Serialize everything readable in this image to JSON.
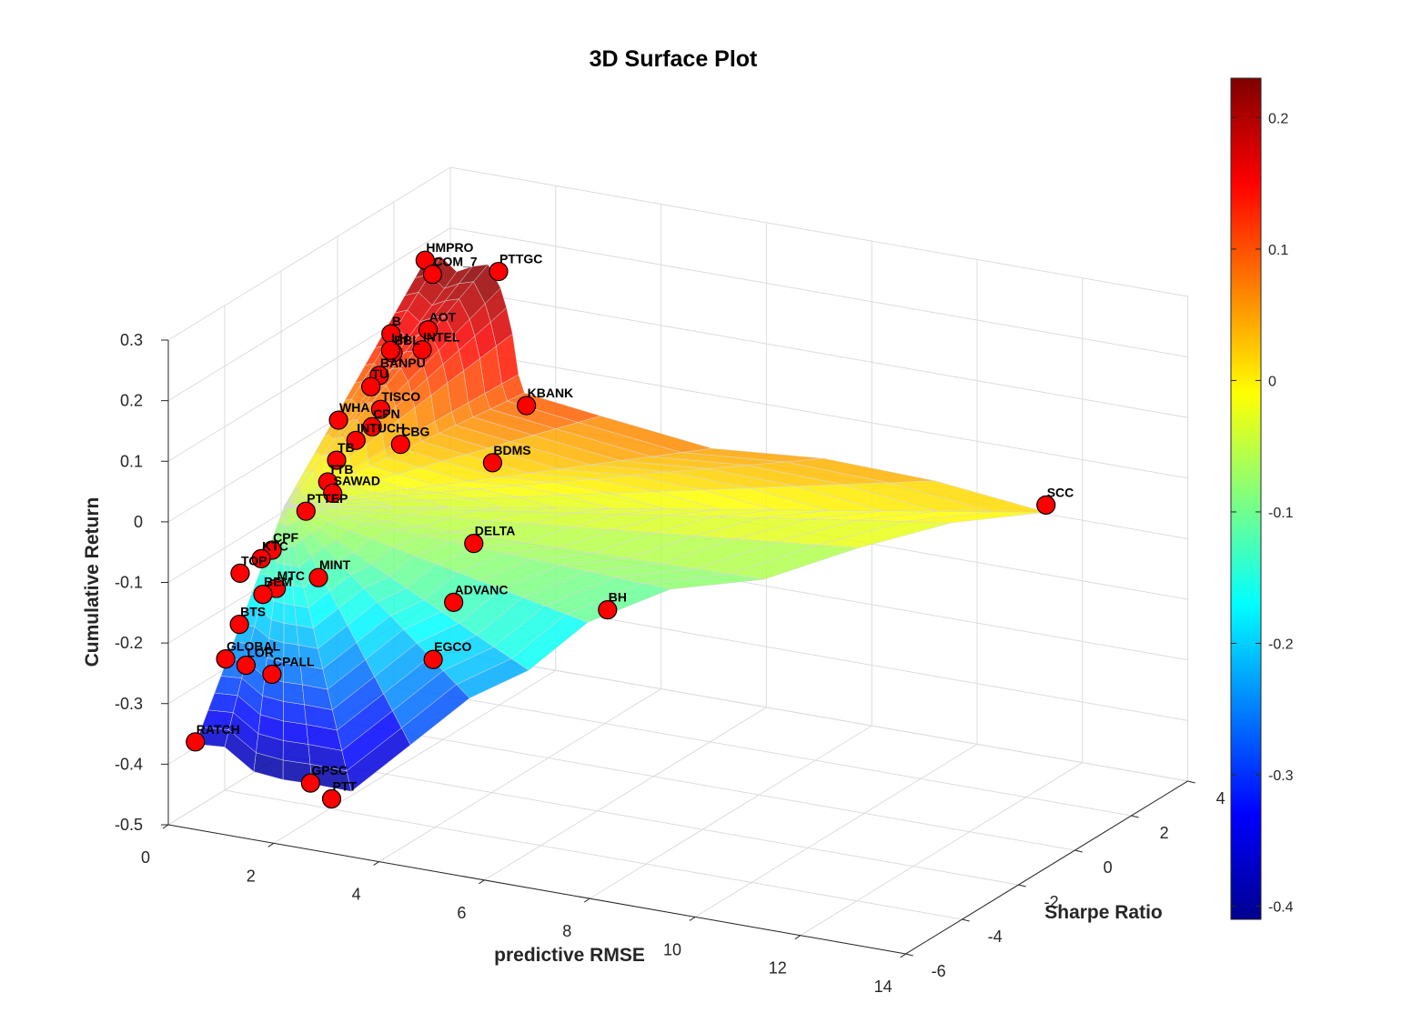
{
  "chart_data": {
    "type": "surface",
    "title": "3D Surface Plot",
    "xlabel": "predictive RMSE",
    "ylabel": "Sharpe Ratio",
    "zlabel": "Cumulative Return",
    "xlim": [
      0,
      14
    ],
    "ylim": [
      -6,
      4
    ],
    "zlim": [
      -0.5,
      0.3
    ],
    "x_ticks": [
      "0",
      "2",
      "4",
      "6",
      "8",
      "10",
      "12",
      "14"
    ],
    "y_ticks": [
      "-6",
      "-4",
      "-2",
      "0",
      "2",
      "4"
    ],
    "z_ticks": [
      "-0.5",
      "-0.4",
      "-0.3",
      "-0.2",
      "-0.1",
      "0",
      "0.1",
      "0.2",
      "0.3"
    ],
    "colormap": "jet",
    "colorbar": {
      "range": [
        -0.41,
        0.23
      ],
      "ticks": [
        "-0.4",
        "-0.3",
        "-0.2",
        "-0.1",
        "0",
        "0.1",
        "0.2"
      ]
    },
    "grid": true,
    "marker_color": "#ff0000",
    "points": [
      {
        "label": "PTTGC",
        "x": 2.2,
        "y": 1.6,
        "z": 0.23
      },
      {
        "label": "HMPRO",
        "x": 0.7,
        "y": 1.8,
        "z": 0.22
      },
      {
        "label": "COM_7",
        "x": 1.0,
        "y": 1.5,
        "z": 0.21
      },
      {
        "label": "AOT",
        "x": 1.4,
        "y": 0.6,
        "z": 0.15
      },
      {
        "label": "INTEL",
        "x": 1.5,
        "y": 0.2,
        "z": 0.13
      },
      {
        "label": "B",
        "x": 0.8,
        "y": 0.4,
        "z": 0.14
      },
      {
        "label": "BBL",
        "x": 1.0,
        "y": 0.1,
        "z": 0.12
      },
      {
        "label": "LH",
        "x": 0.9,
        "y": 0.2,
        "z": 0.12
      },
      {
        "label": "BANPU",
        "x": 0.9,
        "y": -0.2,
        "z": 0.09
      },
      {
        "label": "TU",
        "x": 0.9,
        "y": -0.5,
        "z": 0.08
      },
      {
        "label": "KBANK",
        "x": 3.8,
        "y": -0.4,
        "z": 0.09
      },
      {
        "label": "TISCO",
        "x": 1.3,
        "y": -0.9,
        "z": 0.06
      },
      {
        "label": "BDMS",
        "x": 3.8,
        "y": -1.6,
        "z": 0.03
      },
      {
        "label": "CPN",
        "x": 1.3,
        "y": -1.2,
        "z": 0.04
      },
      {
        "label": "CBG",
        "x": 2.0,
        "y": -1.5,
        "z": 0.03
      },
      {
        "label": "INTUCH",
        "x": 1.1,
        "y": -1.4,
        "z": 0.02
      },
      {
        "label": "WHA",
        "x": 0.5,
        "y": -0.9,
        "z": 0.03
      },
      {
        "label": "TB",
        "x": 1.0,
        "y": -1.9,
        "z": 0.0
      },
      {
        "label": "TTB",
        "x": 1.1,
        "y": -2.4,
        "z": -0.02
      },
      {
        "label": "SAWAD",
        "x": 1.3,
        "y": -2.6,
        "z": -0.03
      },
      {
        "label": "DELTA",
        "x": 4.3,
        "y": -3.2,
        "z": -0.05
      },
      {
        "label": "SCC",
        "x": 12.7,
        "y": 1.4,
        "z": 0.01
      },
      {
        "label": "PTTEP",
        "x": 0.9,
        "y": -2.8,
        "z": -0.06
      },
      {
        "label": "MINT",
        "x": 2.1,
        "y": -4.6,
        "z": -0.1
      },
      {
        "label": "CPF",
        "x": 0.9,
        "y": -4.0,
        "z": -0.09
      },
      {
        "label": "KTC",
        "x": 0.8,
        "y": -4.2,
        "z": -0.1
      },
      {
        "label": "ADVANC",
        "x": 4.4,
        "y": -4.1,
        "z": -0.12
      },
      {
        "label": "BH",
        "x": 7.0,
        "y": -3.5,
        "z": -0.11
      },
      {
        "label": "TOP",
        "x": 0.4,
        "y": -4.2,
        "z": -0.13
      },
      {
        "label": "MTC",
        "x": 1.3,
        "y": -4.6,
        "z": -0.13
      },
      {
        "label": "BEM",
        "x": 1.1,
        "y": -4.7,
        "z": -0.14
      },
      {
        "label": "EGCO",
        "x": 4.6,
        "y": -5.2,
        "z": -0.18
      },
      {
        "label": "BTS",
        "x": 0.6,
        "y": -4.6,
        "z": -0.2
      },
      {
        "label": "GLOBAL",
        "x": 0.5,
        "y": -4.9,
        "z": -0.25
      },
      {
        "label": "LOR",
        "x": 1.1,
        "y": -5.3,
        "z": -0.24
      },
      {
        "label": "CPALL",
        "x": 1.7,
        "y": -5.5,
        "z": -0.24
      },
      {
        "label": "RATCH",
        "x": 0.3,
        "y": -5.6,
        "z": -0.37
      },
      {
        "label": "GPSC",
        "x": 2.7,
        "y": -6.0,
        "z": -0.39
      },
      {
        "label": "PTT",
        "x": 3.1,
        "y": -6.0,
        "z": -0.41
      }
    ]
  }
}
